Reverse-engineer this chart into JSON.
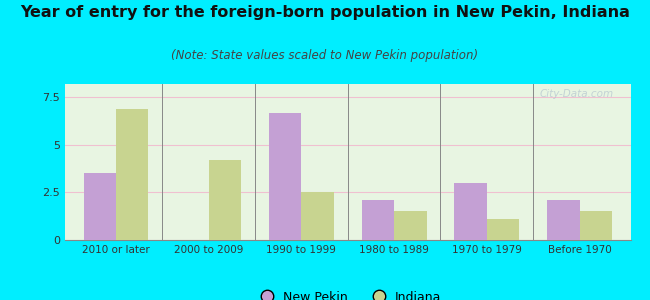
{
  "title": "Year of entry for the foreign-born population in New Pekin, Indiana",
  "subtitle": "(Note: State values scaled to New Pekin population)",
  "categories": [
    "2010 or later",
    "2000 to 2009",
    "1990 to 1999",
    "1980 to 1989",
    "1970 to 1979",
    "Before 1970"
  ],
  "new_pekin": [
    3.5,
    0,
    6.7,
    2.1,
    3.0,
    2.1
  ],
  "indiana": [
    6.9,
    4.2,
    2.5,
    1.5,
    1.1,
    1.5
  ],
  "new_pekin_color": "#c4a0d4",
  "indiana_color": "#c8d490",
  "background_outer": "#00eeff",
  "background_inner_top": "#f0f8ee",
  "background_inner": "#e8f5e2",
  "yticks": [
    0,
    2.5,
    5,
    7.5
  ],
  "ylim": [
    0,
    8.2
  ],
  "watermark": "City-Data.com",
  "legend_new_pekin": "New Pekin",
  "legend_indiana": "Indiana",
  "title_fontsize": 11.5,
  "subtitle_fontsize": 8.5
}
